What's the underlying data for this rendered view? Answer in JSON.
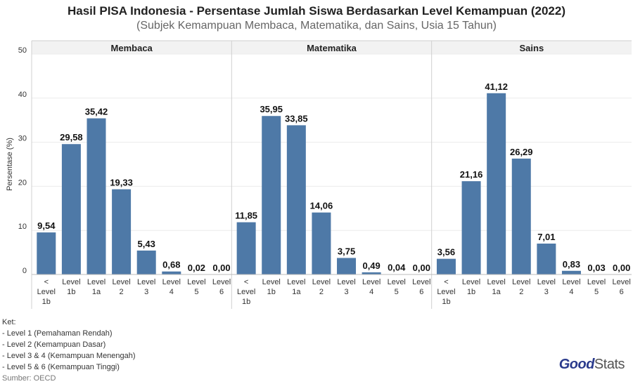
{
  "title": "Hasil PISA Indonesia - Persentase Jumlah Siswa Berdasarkan Level Kemampuan (2022)",
  "subtitle": "(Subjek Kemampuan Membaca, Matematika, dan Sains, Usia 15 Tahun)",
  "chart_data": {
    "type": "bar",
    "ylabel": "Persentase (%)",
    "ylim": [
      0,
      50
    ],
    "yticks": [
      0,
      10,
      20,
      30,
      40,
      50
    ],
    "bar_color": "#4e79a7",
    "categories": [
      [
        "<",
        "Level",
        "1b"
      ],
      [
        "Level",
        "1b"
      ],
      [
        "Level",
        "1a"
      ],
      [
        "Level",
        "2"
      ],
      [
        "Level",
        "3"
      ],
      [
        "Level",
        "4"
      ],
      [
        "Level",
        "5"
      ],
      [
        "Level",
        "6"
      ]
    ],
    "panels": [
      {
        "name": "Membaca",
        "values": [
          9.54,
          29.58,
          35.42,
          19.33,
          5.43,
          0.68,
          0.02,
          0.0
        ],
        "labels": [
          "9,54",
          "29,58",
          "35,42",
          "19,33",
          "5,43",
          "0,68",
          "0,02",
          "0,00"
        ]
      },
      {
        "name": "Matematika",
        "values": [
          11.85,
          35.95,
          33.85,
          14.06,
          3.75,
          0.49,
          0.04,
          0.0
        ],
        "labels": [
          "11,85",
          "35,95",
          "33,85",
          "14,06",
          "3,75",
          "0,49",
          "0,04",
          "0,00"
        ]
      },
      {
        "name": "Sains",
        "values": [
          3.56,
          21.16,
          41.12,
          26.29,
          7.01,
          0.83,
          0.03,
          0.0
        ],
        "labels": [
          "3,56",
          "21,16",
          "41,12",
          "26,29",
          "7,01",
          "0,83",
          "0,03",
          "0,00"
        ]
      }
    ]
  },
  "notes": {
    "heading": "Ket:",
    "items": [
      "- Level 1 (Pemahaman Rendah)",
      "- Level 2 (Kemampuan Dasar)",
      "- Level 3 & 4 (Kemampuan Menengah)",
      "- Level 5 & 6 (Kemampuan Tinggi)"
    ],
    "source": "Sumber: OECD"
  },
  "logo": {
    "part1": "Good",
    "part2": "Stats"
  }
}
